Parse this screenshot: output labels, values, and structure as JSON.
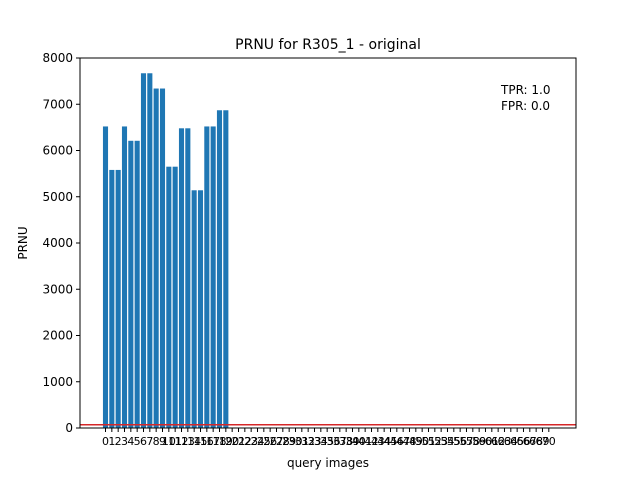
{
  "chart_data": {
    "type": "bar",
    "title": "PRNU for R305_1 - original",
    "xlabel": "query images",
    "ylabel": "PRNU",
    "ylim": [
      0,
      8000
    ],
    "yticks": [
      0,
      1000,
      2000,
      3000,
      4000,
      5000,
      6000,
      7000,
      8000
    ],
    "categories": [
      0,
      1,
      2,
      3,
      4,
      5,
      6,
      7,
      8,
      9,
      10,
      11,
      12,
      13,
      14,
      15,
      16,
      17,
      18,
      19,
      20,
      21,
      22,
      23,
      24,
      25,
      26,
      27,
      28,
      29,
      30,
      31,
      32,
      33,
      34,
      35,
      36,
      37,
      38,
      39,
      40,
      41,
      42,
      43,
      44,
      45,
      46,
      47,
      48,
      49,
      50,
      51,
      52,
      53,
      54,
      55,
      56,
      57,
      58,
      59,
      60,
      61,
      62,
      63,
      64,
      65,
      66,
      67,
      68,
      69,
      70
    ],
    "values": [
      6520,
      5580,
      5580,
      6520,
      6210,
      6210,
      7670,
      7670,
      7340,
      7340,
      5650,
      5650,
      6480,
      6480,
      5140,
      5140,
      6520,
      6520,
      6870,
      6870,
      0,
      0,
      0,
      0,
      0,
      0,
      0,
      0,
      0,
      0,
      0,
      0,
      0,
      0,
      0,
      0,
      0,
      0,
      0,
      0,
      0,
      0,
      0,
      0,
      0,
      0,
      0,
      0,
      0,
      0,
      0,
      0,
      0,
      0,
      0,
      0,
      0,
      0,
      0,
      0,
      0,
      0,
      0,
      0,
      0,
      0,
      0,
      0,
      0,
      0,
      0
    ],
    "threshold": {
      "value": 70,
      "color": "#d62728"
    },
    "bar_color": "#1f77b4",
    "annotations": [
      "TPR: 1.0",
      "FPR: 0.0"
    ],
    "grid": false,
    "legend": "none"
  }
}
